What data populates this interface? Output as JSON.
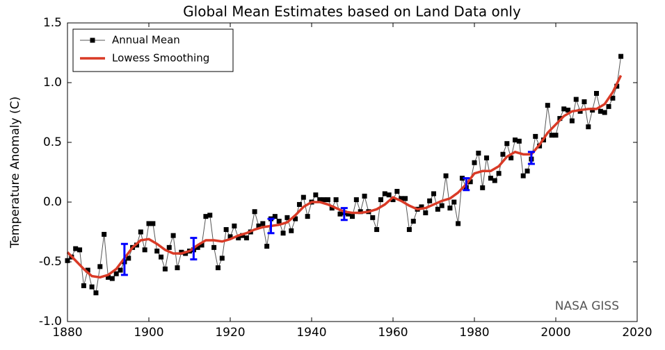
{
  "chart_data": {
    "type": "line",
    "title": "Global Mean Estimates based on Land Data only",
    "y_label": "Temperature Anomaly (C)",
    "annotation": "NASA GISS",
    "legend": "upper left",
    "grid": false,
    "xlim": [
      1880,
      2020
    ],
    "xticks": [
      1880,
      1900,
      1920,
      1940,
      1960,
      1980,
      2000,
      2020
    ],
    "ylim": [
      -1.0,
      1.5
    ],
    "yticks": [
      {
        "value": -1.0,
        "label": "-1.0"
      },
      -0.5,
      {
        "value": 0.0,
        "label": "0.0"
      },
      0.5,
      {
        "value": 1.0,
        "label": "1.0"
      },
      1.5
    ],
    "x": [
      1880,
      1881,
      1882,
      1883,
      1884,
      1885,
      1886,
      1887,
      1888,
      1889,
      1890,
      1891,
      1892,
      1893,
      1894,
      1895,
      1896,
      1897,
      1898,
      1899,
      1900,
      1901,
      1902,
      1903,
      1904,
      1905,
      1906,
      1907,
      1908,
      1909,
      1910,
      1911,
      1912,
      1913,
      1914,
      1915,
      1916,
      1917,
      1918,
      1919,
      1920,
      1921,
      1922,
      1923,
      1924,
      1925,
      1926,
      1927,
      1928,
      1929,
      1930,
      1931,
      1932,
      1933,
      1934,
      1935,
      1936,
      1937,
      1938,
      1939,
      1940,
      1941,
      1942,
      1943,
      1944,
      1945,
      1946,
      1947,
      1948,
      1949,
      1950,
      1951,
      1952,
      1953,
      1954,
      1955,
      1956,
      1957,
      1958,
      1959,
      1960,
      1961,
      1962,
      1963,
      1964,
      1965,
      1966,
      1967,
      1968,
      1969,
      1970,
      1971,
      1972,
      1973,
      1974,
      1975,
      1976,
      1977,
      1978,
      1979,
      1980,
      1981,
      1982,
      1983,
      1984,
      1985,
      1986,
      1987,
      1988,
      1989,
      1990,
      1991,
      1992,
      1993,
      1994,
      1995,
      1996,
      1997,
      1998,
      1999,
      2000,
      2001,
      2002,
      2003,
      2004,
      2005,
      2006,
      2007,
      2008,
      2009,
      2010,
      2011,
      2012,
      2013,
      2014,
      2015,
      2016
    ],
    "series": [
      {
        "name": "Annual Mean",
        "color": "#000000",
        "line_color": "#555555",
        "values": [
          -0.49,
          -0.46,
          -0.39,
          -0.4,
          -0.7,
          -0.57,
          -0.71,
          -0.76,
          -0.54,
          -0.27,
          -0.63,
          -0.64,
          -0.6,
          -0.57,
          -0.5,
          -0.47,
          -0.38,
          -0.36,
          -0.25,
          -0.4,
          -0.18,
          -0.18,
          -0.41,
          -0.46,
          -0.56,
          -0.38,
          -0.28,
          -0.55,
          -0.42,
          -0.43,
          -0.41,
          -0.4,
          -0.38,
          -0.36,
          -0.12,
          -0.11,
          -0.38,
          -0.55,
          -0.47,
          -0.23,
          -0.29,
          -0.2,
          -0.3,
          -0.28,
          -0.3,
          -0.25,
          -0.08,
          -0.2,
          -0.18,
          -0.37,
          -0.14,
          -0.12,
          -0.16,
          -0.26,
          -0.13,
          -0.24,
          -0.14,
          -0.02,
          0.04,
          -0.12,
          0.0,
          0.06,
          0.02,
          0.02,
          0.02,
          -0.05,
          0.02,
          -0.1,
          -0.09,
          -0.1,
          -0.12,
          0.02,
          -0.08,
          0.05,
          -0.08,
          -0.13,
          -0.23,
          0.02,
          0.07,
          0.06,
          0.02,
          0.09,
          0.03,
          0.03,
          -0.23,
          -0.16,
          -0.06,
          -0.04,
          -0.09,
          0.01,
          0.07,
          -0.06,
          -0.03,
          0.22,
          -0.05,
          0.0,
          -0.18,
          0.2,
          0.12,
          0.17,
          0.33,
          0.41,
          0.12,
          0.37,
          0.2,
          0.18,
          0.24,
          0.4,
          0.49,
          0.37,
          0.52,
          0.51,
          0.22,
          0.26,
          0.36,
          0.55,
          0.47,
          0.52,
          0.81,
          0.56,
          0.56,
          0.7,
          0.78,
          0.77,
          0.68,
          0.86,
          0.76,
          0.84,
          0.63,
          0.77,
          0.91,
          0.76,
          0.75,
          0.8,
          0.87,
          0.97,
          1.22
        ]
      },
      {
        "name": "Lowess Smoothing",
        "color": "#d93a26",
        "x": [
          1880,
          1882,
          1884,
          1886,
          1888,
          1890,
          1892,
          1894,
          1896,
          1898,
          1900,
          1902,
          1904,
          1906,
          1908,
          1910,
          1912,
          1914,
          1916,
          1918,
          1920,
          1922,
          1924,
          1926,
          1928,
          1930,
          1932,
          1934,
          1936,
          1938,
          1940,
          1942,
          1944,
          1946,
          1948,
          1950,
          1952,
          1954,
          1956,
          1958,
          1960,
          1962,
          1964,
          1966,
          1968,
          1970,
          1972,
          1974,
          1976,
          1978,
          1980,
          1982,
          1984,
          1986,
          1988,
          1990,
          1992,
          1994,
          1996,
          1998,
          2000,
          2002,
          2004,
          2006,
          2008,
          2010,
          2012,
          2014,
          2016
        ],
        "values": [
          -0.42,
          -0.49,
          -0.56,
          -0.62,
          -0.63,
          -0.61,
          -0.56,
          -0.47,
          -0.38,
          -0.32,
          -0.31,
          -0.35,
          -0.4,
          -0.43,
          -0.43,
          -0.41,
          -0.36,
          -0.32,
          -0.32,
          -0.33,
          -0.31,
          -0.28,
          -0.26,
          -0.23,
          -0.21,
          -0.2,
          -0.19,
          -0.17,
          -0.11,
          -0.04,
          0.0,
          0.0,
          -0.02,
          -0.05,
          -0.08,
          -0.09,
          -0.09,
          -0.08,
          -0.06,
          -0.02,
          0.04,
          0.01,
          -0.03,
          -0.06,
          -0.05,
          -0.02,
          0.01,
          0.03,
          0.08,
          0.15,
          0.24,
          0.26,
          0.26,
          0.3,
          0.38,
          0.42,
          0.4,
          0.4,
          0.48,
          0.58,
          0.65,
          0.72,
          0.76,
          0.77,
          0.78,
          0.78,
          0.82,
          0.92,
          1.06
        ]
      }
    ],
    "error_bars": {
      "color": "#0000ff",
      "x": [
        1894,
        1911,
        1930,
        1948,
        1978,
        1994
      ],
      "values": [
        -0.48,
        -0.39,
        -0.2,
        -0.1,
        0.15,
        0.37
      ],
      "errors": [
        0.13,
        0.09,
        0.06,
        0.05,
        0.05,
        0.05
      ]
    }
  }
}
